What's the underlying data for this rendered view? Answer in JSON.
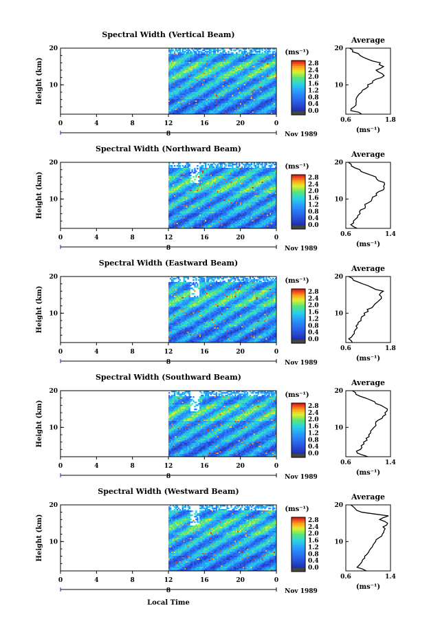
{
  "figure": {
    "x_axis_label": "Local Time",
    "y_axis_label": "Height (km)",
    "date_label": "Nov 1989",
    "day_label": "8",
    "colorbar_unit": "(ms⁻¹)",
    "colorbar_ticks": [
      "2.8",
      "2.4",
      "2.0",
      "1.6",
      "1.2",
      "0.8",
      "0.4",
      "0.0"
    ],
    "average_title": "Average",
    "average_unit": "(ms⁻¹)"
  },
  "chart_data": [
    {
      "type": "heatmap",
      "title": "Spectral Width (Vertical Beam)",
      "x_ticks": [
        "0",
        "4",
        "8",
        "12",
        "16",
        "20",
        "0"
      ],
      "xlim": [
        0,
        24
      ],
      "y_ticks": [
        "20",
        "10"
      ],
      "ylim": [
        2,
        20
      ],
      "data_start_hour": 12,
      "color_range": [
        0.0,
        2.8
      ],
      "profile": {
        "title": "Average",
        "x_ticks": [
          "0.6",
          "1.8"
        ],
        "xlim": [
          0.6,
          1.8
        ],
        "heights": [
          2,
          3,
          4,
          5,
          6,
          7,
          8,
          9,
          10,
          11,
          12,
          13,
          14,
          15,
          16,
          17,
          18,
          19,
          20
        ],
        "values": [
          1.05,
          0.75,
          0.82,
          0.9,
          0.85,
          0.95,
          1.05,
          1.15,
          1.2,
          1.35,
          1.55,
          1.6,
          1.4,
          1.6,
          1.5,
          1.2,
          1.0,
          0.8,
          0.7
        ]
      }
    },
    {
      "type": "heatmap",
      "title": "Spectral Width (Northward Beam)",
      "x_ticks": [
        "0",
        "4",
        "8",
        "12",
        "16",
        "20",
        "0"
      ],
      "xlim": [
        0,
        24
      ],
      "y_ticks": [
        "20",
        "10"
      ],
      "ylim": [
        2,
        20
      ],
      "data_start_hour": 12,
      "color_range": [
        0.0,
        2.8
      ],
      "profile": {
        "title": "Average",
        "x_ticks": [
          "0.6",
          "1.4"
        ],
        "xlim": [
          0.6,
          1.4
        ],
        "heights": [
          2,
          3,
          4,
          5,
          6,
          7,
          8,
          9,
          10,
          11,
          12,
          13,
          14,
          15,
          16,
          17,
          18,
          19,
          20
        ],
        "values": [
          0.8,
          0.7,
          0.75,
          0.8,
          0.85,
          0.88,
          0.95,
          1.0,
          1.05,
          1.15,
          1.2,
          1.28,
          1.3,
          1.2,
          1.15,
          0.95,
          0.85,
          0.7,
          0.65
        ]
      }
    },
    {
      "type": "heatmap",
      "title": "Spectral Width (Eastward Beam)",
      "x_ticks": [
        "0",
        "4",
        "8",
        "12",
        "16",
        "20",
        "0"
      ],
      "xlim": [
        0,
        24
      ],
      "y_ticks": [
        "20",
        "10"
      ],
      "ylim": [
        2,
        20
      ],
      "data_start_hour": 12,
      "color_range": [
        0.0,
        2.8
      ],
      "profile": {
        "title": "Average",
        "x_ticks": [
          "0.6",
          "1.8"
        ],
        "xlim": [
          0.6,
          1.8
        ],
        "heights": [
          2,
          3,
          4,
          5,
          6,
          7,
          8,
          9,
          10,
          11,
          12,
          13,
          14,
          15,
          16,
          17,
          18,
          19,
          20
        ],
        "values": [
          0.8,
          0.7,
          0.8,
          0.85,
          0.9,
          0.95,
          1.0,
          1.05,
          1.1,
          1.2,
          1.35,
          1.45,
          1.55,
          1.5,
          1.6,
          1.3,
          1.05,
          0.8,
          0.7
        ]
      }
    },
    {
      "type": "heatmap",
      "title": "Spectral Width (Southward Beam)",
      "x_ticks": [
        "0",
        "4",
        "8",
        "12",
        "16",
        "20",
        "0"
      ],
      "xlim": [
        0,
        24
      ],
      "y_ticks": [
        "20",
        "10"
      ],
      "ylim": [
        2,
        20
      ],
      "data_start_hour": 12,
      "color_range": [
        0.0,
        2.8
      ],
      "profile": {
        "title": "Average",
        "x_ticks": [
          "0.6",
          "1.4"
        ],
        "xlim": [
          0.6,
          1.4
        ],
        "heights": [
          2,
          3,
          4,
          5,
          6,
          7,
          8,
          9,
          10,
          11,
          12,
          13,
          14,
          15,
          16,
          17,
          18,
          19,
          20
        ],
        "values": [
          1.0,
          0.8,
          0.85,
          0.88,
          0.92,
          0.98,
          1.0,
          1.05,
          1.1,
          1.15,
          1.2,
          1.28,
          1.3,
          1.35,
          1.25,
          1.1,
          0.95,
          0.8,
          0.7
        ]
      }
    },
    {
      "type": "heatmap",
      "title": "Spectral Width (Westward Beam)",
      "x_ticks": [
        "0",
        "4",
        "8",
        "12",
        "16",
        "20",
        "0"
      ],
      "xlim": [
        0,
        24
      ],
      "y_ticks": [
        "20",
        "10"
      ],
      "ylim": [
        2,
        20
      ],
      "data_start_hour": 12,
      "color_range": [
        0.0,
        2.8
      ],
      "profile": {
        "title": "Average",
        "x_ticks": [
          "0.6",
          "1.4"
        ],
        "xlim": [
          0.6,
          1.4
        ],
        "heights": [
          2,
          3,
          4,
          5,
          6,
          7,
          8,
          9,
          10,
          11,
          12,
          13,
          14,
          15,
          16,
          17,
          18,
          19,
          20
        ],
        "values": [
          0.95,
          0.8,
          0.85,
          0.9,
          0.95,
          1.0,
          1.05,
          1.1,
          1.15,
          1.2,
          1.25,
          1.3,
          1.28,
          1.35,
          1.2,
          1.35,
          0.9,
          0.75,
          0.7
        ]
      }
    }
  ]
}
